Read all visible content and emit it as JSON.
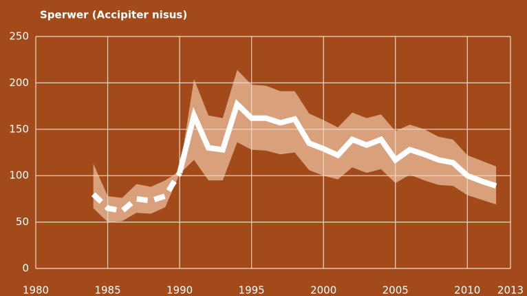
{
  "chart_data": {
    "type": "line",
    "title": "Sperwer (Accipiter nisus)",
    "x": [
      1984,
      1985,
      1986,
      1987,
      1988,
      1989,
      1990,
      1991,
      1992,
      1993,
      1994,
      1995,
      1996,
      1997,
      1998,
      1999,
      2000,
      2001,
      2002,
      2003,
      2004,
      2005,
      2006,
      2007,
      2008,
      2009,
      2010,
      2011,
      2012
    ],
    "values": [
      80,
      65,
      62,
      75,
      73,
      78,
      103,
      165,
      130,
      128,
      177,
      162,
      162,
      157,
      161,
      135,
      129,
      122,
      139,
      133,
      139,
      117,
      128,
      123,
      117,
      114,
      100,
      94,
      89
    ],
    "upper": [
      113,
      78,
      76,
      91,
      88,
      95,
      105,
      204,
      165,
      162,
      214,
      198,
      197,
      191,
      191,
      167,
      160,
      152,
      168,
      162,
      166,
      148,
      155,
      150,
      142,
      139,
      122,
      116,
      110
    ],
    "lower": [
      65,
      50,
      51,
      60,
      59,
      66,
      102,
      117,
      95,
      95,
      136,
      128,
      127,
      123,
      125,
      106,
      100,
      96,
      109,
      103,
      107,
      92,
      101,
      95,
      90,
      89,
      79,
      74,
      69
    ],
    "dashed_until": 1990,
    "color": "#ffffff",
    "band_color": "#d9a07c",
    "xlim": [
      1980,
      2013
    ],
    "xticks": [
      1980,
      1985,
      1990,
      1995,
      2000,
      2005,
      2010,
      2013
    ],
    "ylim": [
      0,
      250
    ],
    "yticks": [
      0,
      50,
      100,
      150,
      200,
      250
    ],
    "grid": true
  }
}
